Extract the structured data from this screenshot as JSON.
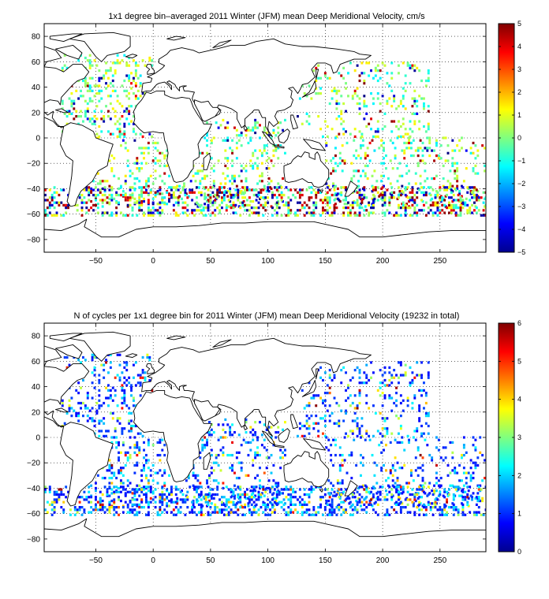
{
  "figure": {
    "colormap": "jet",
    "land_color": "#ffffff",
    "coast_color": "#000000",
    "background": "#ffffff"
  },
  "chart_data": [
    {
      "type": "heatmap",
      "title": "1x1 degree bin–averaged 2011 Winter (JFM) mean Deep Meridional Velocity, cm/s",
      "xlabel": "",
      "ylabel": "",
      "xlim": [
        -95,
        290
      ],
      "ylim": [
        -90,
        90
      ],
      "x_ticks": [
        -50,
        0,
        50,
        100,
        150,
        200,
        250
      ],
      "x_tick_labels": [
        "−50",
        "0",
        "50",
        "100",
        "150",
        "200",
        "250"
      ],
      "y_ticks": [
        80,
        60,
        40,
        20,
        0,
        -20,
        -40,
        -60,
        -80
      ],
      "y_tick_labels": [
        "80",
        "60",
        "40",
        "20",
        "0",
        "−20",
        "−40",
        "−60",
        "−80"
      ],
      "grid": true,
      "colorbar": {
        "range": [
          -5,
          5
        ],
        "ticks": [
          5,
          4,
          3,
          2,
          1,
          0,
          -1,
          -2,
          -3,
          -4,
          -5
        ],
        "tick_labels": [
          "5",
          "4",
          "3",
          "2",
          "1",
          "0",
          "−1",
          "−2",
          "−3",
          "−4",
          "−5"
        ]
      },
      "value_distribution": "mostly near 0 (cyan/green), scattered strong ±5 values concentrated in Southern Ocean 40–60S",
      "ocean_regions_sampled": [
        "North Atlantic",
        "South Atlantic",
        "Indian Ocean",
        "North Pacific",
        "South Pacific",
        "Southern Ocean"
      ]
    },
    {
      "type": "heatmap",
      "title": "N of cycles per 1x1 degree bin for 2011 Winter (JFM) mean Deep Meridional Velocity (19232 in total)",
      "xlabel": "",
      "ylabel": "",
      "xlim": [
        -95,
        290
      ],
      "ylim": [
        -90,
        90
      ],
      "x_ticks": [
        -50,
        0,
        50,
        100,
        150,
        200,
        250
      ],
      "x_tick_labels": [
        "−50",
        "0",
        "50",
        "100",
        "150",
        "200",
        "250"
      ],
      "y_ticks": [
        80,
        60,
        40,
        20,
        0,
        -20,
        -40,
        -60,
        -80
      ],
      "y_tick_labels": [
        "80",
        "60",
        "40",
        "20",
        "0",
        "−20",
        "−40",
        "−60",
        "−80"
      ],
      "grid": true,
      "total_cycles": 19232,
      "colorbar": {
        "range": [
          0,
          6
        ],
        "ticks": [
          6,
          5,
          4,
          3,
          2,
          1,
          0
        ],
        "tick_labels": [
          "6",
          "5",
          "4",
          "3",
          "2",
          "1",
          "0"
        ]
      },
      "value_distribution": "mostly 1–2 cycles per bin (blue/cyan), occasional 3–6 (yellow/red)",
      "ocean_regions_sampled": [
        "North Atlantic",
        "South Atlantic",
        "Indian Ocean",
        "North Pacific",
        "South Pacific",
        "Southern Ocean"
      ]
    }
  ]
}
